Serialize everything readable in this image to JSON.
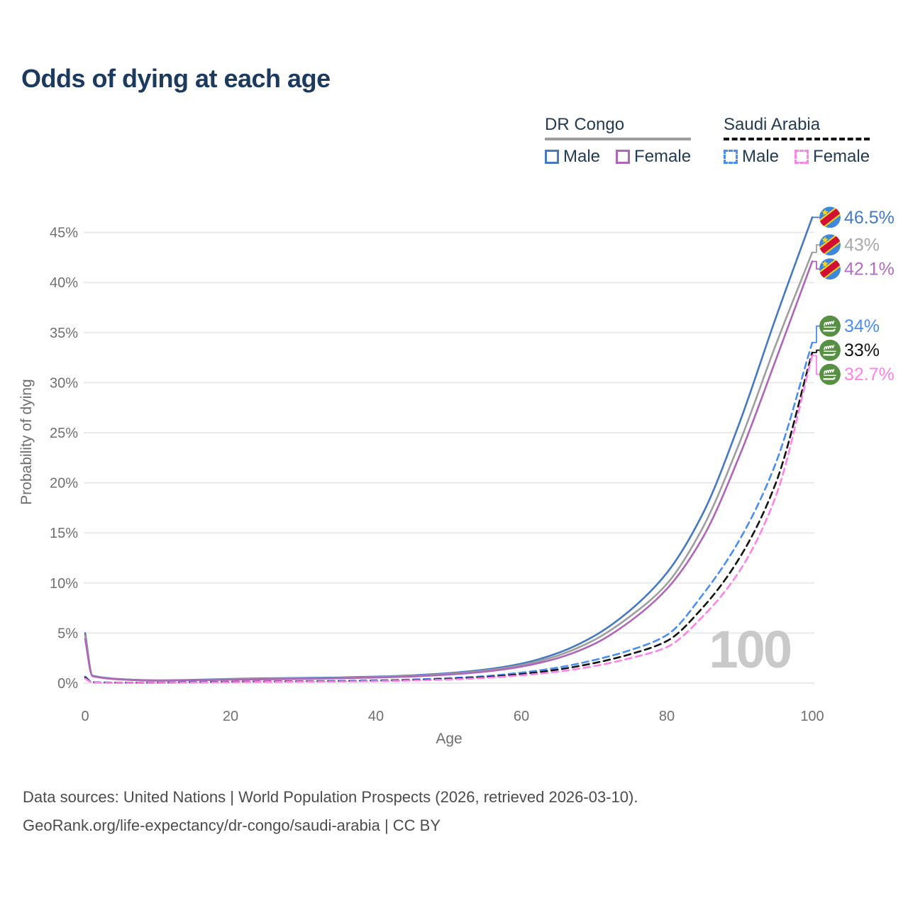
{
  "title": "Odds of dying at each age",
  "legend": {
    "groups": [
      {
        "name": "DR Congo",
        "line_color": "#9e9e9e",
        "line_style": "solid",
        "items": [
          {
            "label": "Male",
            "color": "#4579c2",
            "dashed": false
          },
          {
            "label": "Female",
            "color": "#b066b8",
            "dashed": false
          }
        ]
      },
      {
        "name": "Saudi Arabia",
        "line_color": "#141414",
        "line_style": "dashed",
        "items": [
          {
            "label": "Male",
            "color": "#4b8ef2",
            "dashed": true
          },
          {
            "label": "Female",
            "color": "#ff82e9",
            "dashed": true
          }
        ]
      }
    ]
  },
  "chart_data": {
    "type": "line",
    "title": "Odds of dying at each age",
    "xlabel": "Age",
    "ylabel": "Probability of dying",
    "watermark": "100",
    "xlim": [
      0,
      100
    ],
    "ylim": [
      0,
      47
    ],
    "x_ticks": [
      0,
      20,
      40,
      60,
      80,
      100
    ],
    "y_ticks": [
      0,
      5,
      10,
      15,
      20,
      25,
      30,
      35,
      40,
      45
    ],
    "y_tick_suffix": "%",
    "grid": "horizontal-only",
    "legend_position": "top-right",
    "x": [
      0,
      1,
      5,
      10,
      15,
      20,
      25,
      30,
      35,
      40,
      45,
      50,
      55,
      60,
      65,
      70,
      75,
      80,
      85,
      90,
      95,
      100
    ],
    "series": [
      {
        "name": "DR Congo — Male",
        "country": "DR Congo",
        "sex": "Male",
        "color": "#4579c2",
        "dashed": false,
        "flag": "dr-congo-flag",
        "end_label": "46.5%",
        "end_label_color": "#4579c2",
        "values": [
          5.0,
          0.75,
          0.4,
          0.28,
          0.33,
          0.42,
          0.48,
          0.52,
          0.57,
          0.65,
          0.78,
          1.0,
          1.35,
          1.95,
          3.0,
          4.7,
          7.3,
          11.0,
          17.0,
          26.0,
          36.5,
          46.5
        ]
      },
      {
        "name": "DR Congo — All",
        "country": "DR Congo",
        "sex": "All",
        "color": "#9e9e9e",
        "dashed": false,
        "flag": "dr-congo-flag",
        "end_label": "43%",
        "end_label_color": "#a8a8a8",
        "values": [
          4.7,
          0.72,
          0.38,
          0.26,
          0.3,
          0.38,
          0.43,
          0.47,
          0.52,
          0.6,
          0.72,
          0.92,
          1.25,
          1.8,
          2.75,
          4.3,
          6.7,
          9.9,
          15.6,
          24.0,
          33.8,
          43.0
        ]
      },
      {
        "name": "DR Congo — Female",
        "country": "DR Congo",
        "sex": "Female",
        "color": "#b066b8",
        "dashed": false,
        "flag": "dr-congo-flag",
        "end_label": "42.1%",
        "end_label_color": "#b46cc2",
        "values": [
          4.4,
          0.7,
          0.36,
          0.25,
          0.28,
          0.34,
          0.38,
          0.42,
          0.48,
          0.55,
          0.66,
          0.85,
          1.15,
          1.65,
          2.5,
          3.9,
          6.2,
          9.4,
          14.6,
          22.7,
          32.3,
          42.1
        ]
      },
      {
        "name": "Saudi Arabia — Male",
        "country": "Saudi Arabia",
        "sex": "Male",
        "color": "#4b8ef2",
        "dashed": true,
        "flag": "saudi-arabia-flag",
        "end_label": "34%",
        "end_label_color": "#4b8ef2",
        "values": [
          0.65,
          0.1,
          0.05,
          0.05,
          0.1,
          0.15,
          0.18,
          0.2,
          0.23,
          0.28,
          0.36,
          0.5,
          0.7,
          1.05,
          1.55,
          2.3,
          3.3,
          4.8,
          8.9,
          14.3,
          22.0,
          34.0
        ]
      },
      {
        "name": "Saudi Arabia — All",
        "country": "Saudi Arabia",
        "sex": "All",
        "color": "#141414",
        "dashed": true,
        "flag": "saudi-arabia-flag",
        "end_label": "33%",
        "end_label_color": "#141414",
        "values": [
          0.55,
          0.08,
          0.04,
          0.04,
          0.08,
          0.12,
          0.14,
          0.16,
          0.19,
          0.23,
          0.3,
          0.42,
          0.6,
          0.9,
          1.35,
          2.0,
          2.9,
          4.2,
          7.6,
          12.5,
          20.0,
          33.0
        ]
      },
      {
        "name": "Saudi Arabia — Female",
        "country": "Saudi Arabia",
        "sex": "Female",
        "color": "#ff82e9",
        "dashed": true,
        "flag": "saudi-arabia-flag",
        "end_label": "32.7%",
        "end_label_color": "#ff82e9",
        "values": [
          0.45,
          0.07,
          0.03,
          0.03,
          0.06,
          0.1,
          0.12,
          0.14,
          0.16,
          0.2,
          0.26,
          0.36,
          0.52,
          0.78,
          1.15,
          1.7,
          2.5,
          3.6,
          6.7,
          11.2,
          18.7,
          32.7
        ]
      }
    ]
  },
  "footer": {
    "line1": "Data sources: United Nations | World Population Prospects (2026, retrieved 2026-03-10).",
    "line2": "GeoRank.org/life-expectancy/dr-congo/saudi-arabia | CC BY"
  }
}
